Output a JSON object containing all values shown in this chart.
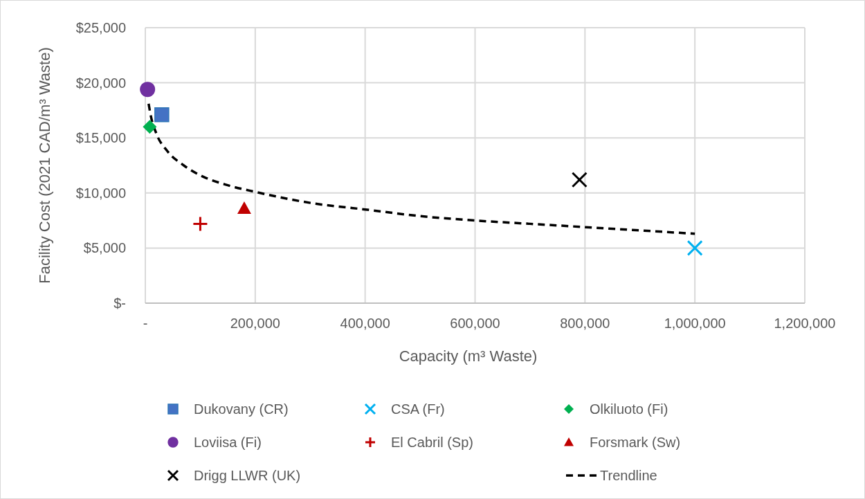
{
  "chart_data": {
    "type": "scatter",
    "xlabel": "Capacity (m³ Waste)",
    "ylabel": "Facility Cost (2021 CAD/m³ Waste)",
    "xlim": [
      0,
      1200000
    ],
    "xticks": [
      {
        "value": 0,
        "label": "-"
      },
      {
        "value": 200000,
        "label": "200,000"
      },
      {
        "value": 400000,
        "label": "400,000"
      },
      {
        "value": 600000,
        "label": "600,000"
      },
      {
        "value": 800000,
        "label": "800,000"
      },
      {
        "value": 1000000,
        "label": "1,000,000"
      },
      {
        "value": 1200000,
        "label": "1,200,000"
      }
    ],
    "ylim": [
      0,
      25000
    ],
    "yticks": [
      {
        "value": 0,
        "label": "$-"
      },
      {
        "value": 5000,
        "label": "$5,000"
      },
      {
        "value": 10000,
        "label": "$10,000"
      },
      {
        "value": 15000,
        "label": "$15,000"
      },
      {
        "value": 20000,
        "label": "$20,000"
      },
      {
        "value": 25000,
        "label": "$25,000"
      }
    ],
    "grid": true,
    "legend": "bottom",
    "series": [
      {
        "name": "Dukovany (CR)",
        "color": "#4472c4",
        "marker": "square",
        "x": [
          30000
        ],
        "values": [
          17100
        ]
      },
      {
        "name": "CSA (Fr)",
        "color": "#00b0f0",
        "marker": "cross",
        "x": [
          1000000
        ],
        "values": [
          5000
        ]
      },
      {
        "name": "Olkiluoto (Fi)",
        "color": "#00b050",
        "marker": "diamond",
        "x": [
          8000
        ],
        "values": [
          16000
        ]
      },
      {
        "name": "Loviisa (Fi)",
        "color": "#7030a0",
        "marker": "circle",
        "x": [
          4000
        ],
        "values": [
          19400
        ]
      },
      {
        "name": "El Cabril (Sp)",
        "color": "#c00000",
        "marker": "plus",
        "x": [
          100000
        ],
        "values": [
          7200
        ]
      },
      {
        "name": "Forsmark (Sw)",
        "color": "#c00000",
        "marker": "triangle",
        "x": [
          180000
        ],
        "values": [
          8600
        ]
      },
      {
        "name": "Drigg LLWR (UK)",
        "color": "#000000",
        "marker": "cross",
        "x": [
          790000
        ],
        "values": [
          11200
        ]
      },
      {
        "name": "Trendline",
        "type": "line",
        "color": "#000000",
        "marker": "none",
        "line_style": "dashed",
        "x": [
          6000,
          10000,
          20000,
          40000,
          70000,
          100000,
          150000,
          200000,
          300000,
          400000,
          500000,
          600000,
          700000,
          800000,
          900000,
          1000000
        ],
        "values": [
          18100,
          17000,
          15400,
          13800,
          12500,
          11600,
          10700,
          10100,
          9100,
          8500,
          7900,
          7500,
          7200,
          6900,
          6600,
          6300
        ]
      }
    ]
  }
}
